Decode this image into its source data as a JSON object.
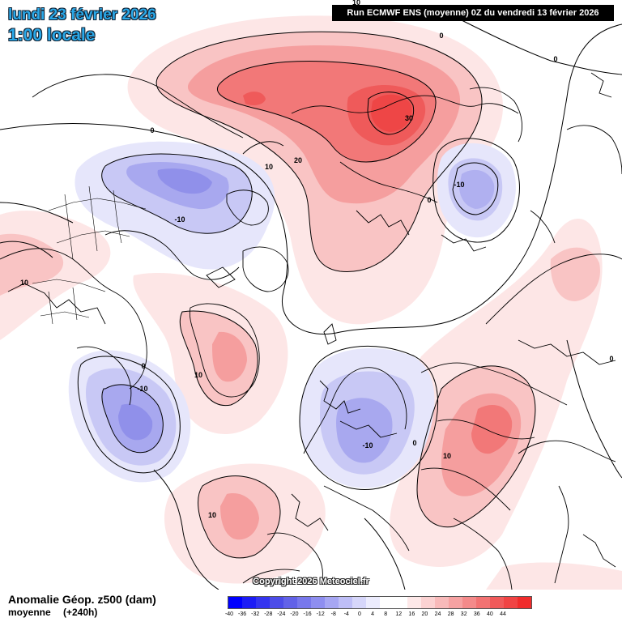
{
  "header": {
    "date_line": "lundi 23 février 2026",
    "time_line": "1:00 locale",
    "run_info": "Run ECMWF ENS (moyenne) 0Z du vendredi 13 février 2026"
  },
  "map": {
    "copyright": "Copyright 2026 Meteociel.fr",
    "contour_labels": [
      "10",
      "0",
      "30",
      "20",
      "10",
      "0",
      "-10",
      "0",
      "0",
      "-10",
      "10",
      "0",
      "10",
      "0",
      "-10",
      "10",
      "-10",
      "0",
      "10",
      "10",
      "0"
    ]
  },
  "footer": {
    "variable_title": "Anomalie Géop. z500 (dam)",
    "mean_label": "moyenne",
    "range_label": "(+240h)"
  },
  "legend": {
    "colors": [
      "#0000ff",
      "#1c1cf5",
      "#3434ef",
      "#4c4ce8",
      "#6262e8",
      "#7878ec",
      "#8e8ef0",
      "#a6a6f3",
      "#bebef7",
      "#d6d6fa",
      "#ececfd",
      "#ffffff",
      "#ffffff",
      "#fde8e8",
      "#fbd2d2",
      "#f8baba",
      "#f6a2a2",
      "#f48a8a",
      "#f27272",
      "#f05a5a",
      "#f04444",
      "#f02c2c"
    ],
    "ticks": [
      "-40",
      "-36",
      "-32",
      "-28",
      "-24",
      "-20",
      "-16",
      "-12",
      "-8",
      "-4",
      "0",
      "4",
      "8",
      "12",
      "16",
      "20",
      "24",
      "28",
      "32",
      "36",
      "40",
      "44"
    ]
  }
}
